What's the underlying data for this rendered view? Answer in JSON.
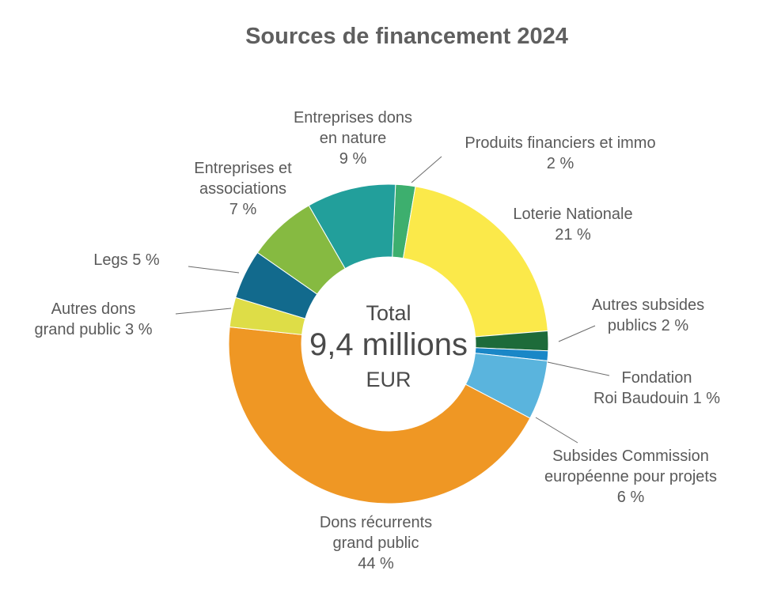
{
  "chart_data": {
    "type": "pie",
    "variant": "donut",
    "title": "Sources de financement 2024",
    "center": {
      "line1": "Total",
      "line2": "9,4 millions",
      "line3": "EUR"
    },
    "slices": [
      {
        "label_lines": [
          "Produits financiers et immo"
        ],
        "value": 2,
        "value_label": "2 %",
        "color": "#3daf6e"
      },
      {
        "label_lines": [
          "Loterie Nationale"
        ],
        "value": 21,
        "value_label": "21 %",
        "color": "#fbe94a"
      },
      {
        "label_lines": [
          "Autres subsides",
          "publics 2 %"
        ],
        "value": 2,
        "value_label": "",
        "color": "#1d6b3a"
      },
      {
        "label_lines": [
          "Fondation",
          "Roi Baudouin 1 %"
        ],
        "value": 1,
        "value_label": "",
        "color": "#1a87c7"
      },
      {
        "label_lines": [
          "Subsides Commission",
          "européenne pour projets"
        ],
        "value": 6,
        "value_label": "6 %",
        "color": "#5ab4dd"
      },
      {
        "label_lines": [
          "Dons récurrents",
          "grand public"
        ],
        "value": 44,
        "value_label": "44 %",
        "color": "#ef9724"
      },
      {
        "label_lines": [
          "Autres dons",
          "grand public 3 %"
        ],
        "value": 3,
        "value_label": "",
        "color": "#dedd47"
      },
      {
        "label_lines": [
          "Legs 5 %"
        ],
        "value": 5,
        "value_label": "",
        "color": "#126a8d"
      },
      {
        "label_lines": [
          "Entreprises et",
          "associations"
        ],
        "value": 7,
        "value_label": "7 %",
        "color": "#86ba41"
      },
      {
        "label_lines": [
          "Entreprises dons",
          "en nature"
        ],
        "value": 9,
        "value_label": "9 %",
        "color": "#229f9b"
      }
    ]
  }
}
